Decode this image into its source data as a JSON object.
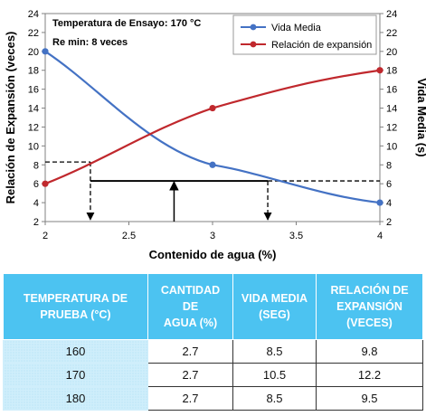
{
  "chart_data": {
    "type": "line",
    "x": [
      2,
      3,
      4
    ],
    "xticks": [
      "2",
      "2.5",
      "3",
      "3.5",
      "4"
    ],
    "xlim": [
      2,
      4
    ],
    "xlabel": "Contenido de agua (%)",
    "ylabel_left": "Relación de Expansión (veces)",
    "ylabel_right": "Vida Media (s)",
    "ylim_left": [
      2,
      24
    ],
    "ylim_right": [
      2,
      24
    ],
    "yticks": [
      "2",
      "4",
      "6",
      "8",
      "10",
      "12",
      "14",
      "16",
      "18",
      "20",
      "22",
      "24"
    ],
    "series": [
      {
        "name": "Vida Media",
        "axis": "right",
        "color": "#4472c4",
        "values": [
          20,
          8,
          4
        ]
      },
      {
        "name": "Relación de expansión",
        "axis": "left",
        "color": "#c0282d",
        "values": [
          6,
          14,
          18
        ]
      }
    ],
    "annotations": [
      "Temperatura de Ensayo: 170 °C",
      "Re min: 8 veces"
    ],
    "guides": {
      "expansion_min": 8.3,
      "x_at_expansion_min": 2.27,
      "half_life_level": 6.3,
      "x_at_half_life": 3.33,
      "x_optimal": 2.77
    },
    "legend_position": "top-right"
  },
  "table": {
    "headers": [
      [
        "TEMPERATURA DE",
        "PRUEBA (°C)"
      ],
      [
        "CANTIDAD DE",
        "AGUA (%)"
      ],
      [
        "VIDA MEDIA",
        "(SEG)"
      ],
      [
        "RELACIÓN DE",
        "EXPANSIÓN",
        "(VECES)"
      ]
    ],
    "rows": [
      [
        "160",
        "2.7",
        "8.5",
        "9.8"
      ],
      [
        "170",
        "2.7",
        "10.5",
        "12.2"
      ],
      [
        "180",
        "2.7",
        "8.5",
        "9.5"
      ]
    ]
  }
}
